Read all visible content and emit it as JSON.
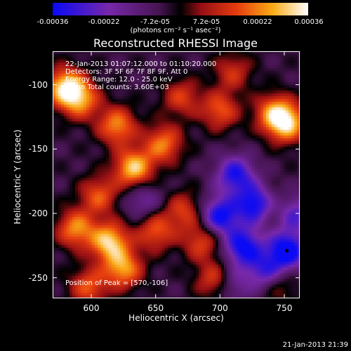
{
  "colorbar": {
    "ticks": [
      "-0.00036",
      "-0.00022",
      "-7.2e-05",
      "7.2e-05",
      "0.00022",
      "0.00036"
    ],
    "units": "(photons cm⁻² s⁻¹ asec⁻²)",
    "range": [
      -0.00036,
      0.00036
    ]
  },
  "annotation": {
    "line1": "22-Jan-2013 01:07:12.000 to 01:10:20.000",
    "line2": "Detectors: 3F 5F 6F 7F 8F 9F, Att 0",
    "line3": "Energy Range: 12.0 - 25.0 keV",
    "line4": "Clean     Total counts: 3.60E+03"
  },
  "peak_label": "Position of Peak = [570,-106]",
  "timestamp": "21-Jan-2013 21:39",
  "chart_data": {
    "type": "heatmap",
    "title": "Reconstructed RHESSI Image",
    "xlabel": "Heliocentric X (arcsec)",
    "ylabel": "Heliocentric Y (arcsec)",
    "xlim": [
      570,
      762
    ],
    "ylim": [
      -266,
      -74
    ],
    "x_ticks": [
      "600",
      "650",
      "700",
      "750"
    ],
    "y_ticks": [
      "-100",
      "-150",
      "-200",
      "-250"
    ],
    "peak": [
      570,
      -106
    ],
    "min_marker": [
      752,
      -229
    ],
    "colormap": "blue-purple-red-yellow-white",
    "blobs": [
      {
        "x": 580,
        "y": -102,
        "amp": 1.0
      },
      {
        "x": 592,
        "y": -112,
        "amp": 0.7
      },
      {
        "x": 752,
        "y": -130,
        "amp": 0.9
      },
      {
        "x": 742,
        "y": -122,
        "amp": 0.7
      },
      {
        "x": 620,
        "y": -132,
        "amp": 0.75
      },
      {
        "x": 633,
        "y": -165,
        "amp": 0.95
      },
      {
        "x": 656,
        "y": -146,
        "amp": 0.7
      },
      {
        "x": 606,
        "y": -186,
        "amp": 0.6
      },
      {
        "x": 588,
        "y": -212,
        "amp": 0.75
      },
      {
        "x": 614,
        "y": -222,
        "amp": 0.95
      },
      {
        "x": 625,
        "y": -243,
        "amp": 0.8
      },
      {
        "x": 650,
        "y": -214,
        "amp": 0.6
      },
      {
        "x": 686,
        "y": -222,
        "amp": 0.55
      },
      {
        "x": 697,
        "y": -252,
        "amp": 0.65
      },
      {
        "x": 672,
        "y": -198,
        "amp": 0.5
      },
      {
        "x": 700,
        "y": -120,
        "amp": 0.6
      },
      {
        "x": 670,
        "y": -110,
        "amp": 0.5
      },
      {
        "x": 710,
        "y": -90,
        "amp": 0.45
      },
      {
        "x": 598,
        "y": -257,
        "amp": 0.6
      },
      {
        "x": 745,
        "y": -255,
        "amp": 0.4
      },
      {
        "x": 740,
        "y": -195,
        "amp": 0.3
      },
      {
        "x": 712,
        "y": -170,
        "amp": -0.8
      },
      {
        "x": 728,
        "y": -193,
        "amp": -1.0
      },
      {
        "x": 700,
        "y": -202,
        "amp": -0.9
      },
      {
        "x": 718,
        "y": -226,
        "amp": -0.9
      },
      {
        "x": 752,
        "y": -229,
        "amp": -1.0
      },
      {
        "x": 736,
        "y": -246,
        "amp": -0.7
      },
      {
        "x": 758,
        "y": -200,
        "amp": -0.6
      },
      {
        "x": 708,
        "y": -255,
        "amp": -0.5
      },
      {
        "x": 640,
        "y": -190,
        "amp": -0.4
      }
    ]
  }
}
